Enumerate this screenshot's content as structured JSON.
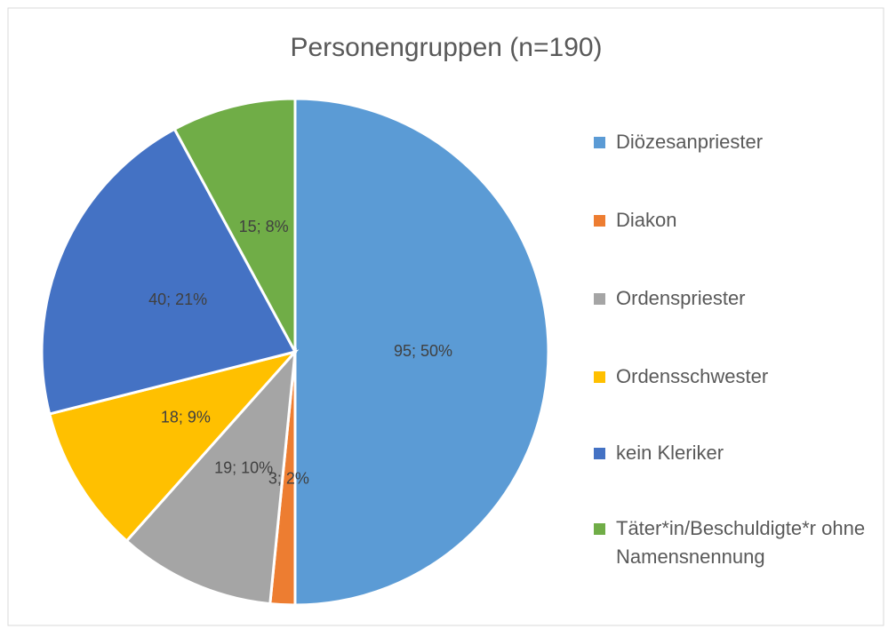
{
  "chart_data": {
    "type": "pie",
    "title": "Personengruppen  (n=190)",
    "categories": [
      "Diözesanpriester",
      "Diakon",
      "Ordenspriester",
      "Ordensschwester",
      "kein Kleriker",
      "Täter*in/Beschuldigte*r ohne Namensnennung"
    ],
    "values": [
      95,
      3,
      19,
      18,
      40,
      15
    ],
    "value_labels": [
      "95; 50%",
      "3; 2%",
      "19; 10%",
      "18; 9%",
      "40; 21%",
      "15; 8%"
    ],
    "colors": [
      "#5b9bd5",
      "#ed7d31",
      "#a5a5a5",
      "#ffc000",
      "#4472c4",
      "#70ad47"
    ],
    "legend": "right"
  }
}
